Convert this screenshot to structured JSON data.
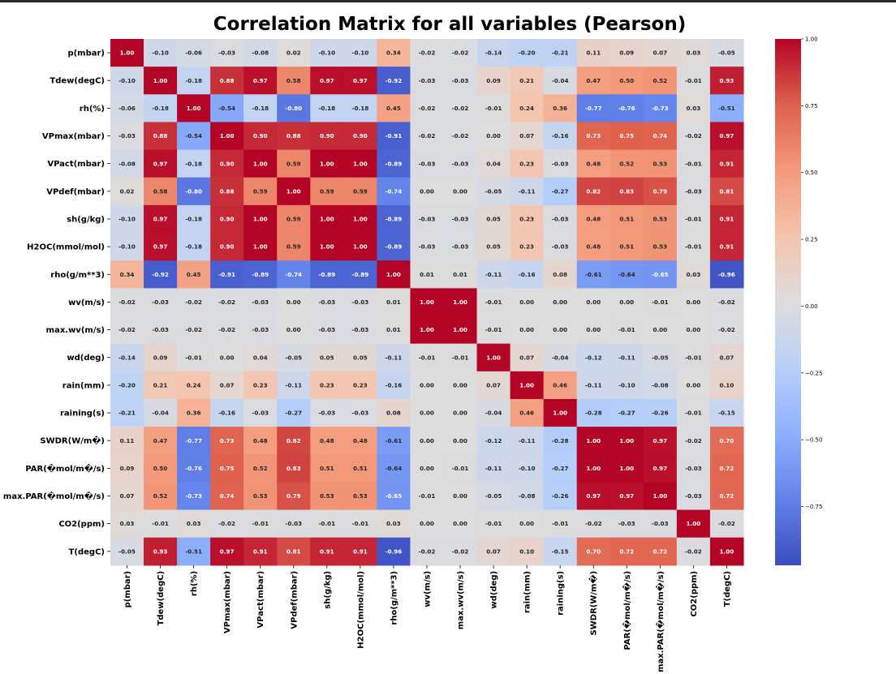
{
  "chart_data": {
    "type": "heatmap",
    "title": "Correlation Matrix for all variables (Pearson)",
    "variables": [
      "p(mbar)",
      "Tdew(degC)",
      "rh(%)",
      "VPmax(mbar)",
      "VPact(mbar)",
      "VPdef(mbar)",
      "sh(g/kg)",
      "H2OC(mmol/mol)",
      "rho(g/m**3)",
      "wv(m/s)",
      "max.wv(m/s)",
      "wd(deg)",
      "rain(mm)",
      "raining(s)",
      "SWDR(W/m�)",
      "PAR(�mol/m�/s)",
      "max.PAR(�mol/m�/s)",
      "CO2(ppm)",
      "T(degC)"
    ],
    "values": [
      [
        1.0,
        -0.1,
        -0.06,
        -0.03,
        -0.08,
        0.02,
        -0.1,
        -0.1,
        0.34,
        -0.02,
        -0.02,
        -0.14,
        -0.2,
        -0.21,
        0.11,
        0.09,
        0.07,
        0.03,
        -0.05
      ],
      [
        -0.1,
        1.0,
        -0.18,
        0.88,
        0.97,
        0.58,
        0.97,
        0.97,
        -0.92,
        -0.03,
        -0.03,
        0.09,
        0.21,
        -0.04,
        0.47,
        0.5,
        0.52,
        -0.01,
        0.93
      ],
      [
        -0.06,
        -0.18,
        1.0,
        -0.54,
        -0.18,
        -0.8,
        -0.18,
        -0.18,
        0.45,
        -0.02,
        -0.02,
        -0.01,
        0.24,
        0.36,
        -0.77,
        -0.76,
        -0.73,
        0.03,
        -0.51
      ],
      [
        -0.03,
        0.88,
        -0.54,
        1.0,
        0.9,
        0.88,
        0.9,
        0.9,
        -0.91,
        -0.02,
        -0.02,
        0.0,
        0.07,
        -0.16,
        0.73,
        0.75,
        0.74,
        -0.02,
        0.97
      ],
      [
        -0.08,
        0.97,
        -0.18,
        0.9,
        1.0,
        0.59,
        1.0,
        1.0,
        -0.89,
        -0.03,
        -0.03,
        0.04,
        0.23,
        -0.03,
        0.48,
        0.52,
        0.53,
        -0.01,
        0.91
      ],
      [
        0.02,
        0.58,
        -0.8,
        0.88,
        0.59,
        1.0,
        0.59,
        0.59,
        -0.74,
        0.0,
        0.0,
        -0.05,
        -0.11,
        -0.27,
        0.82,
        0.83,
        0.79,
        -0.03,
        0.81
      ],
      [
        -0.1,
        0.97,
        -0.18,
        0.9,
        1.0,
        0.59,
        1.0,
        1.0,
        -0.89,
        -0.03,
        -0.03,
        0.05,
        0.23,
        -0.03,
        0.48,
        0.51,
        0.53,
        -0.01,
        0.91
      ],
      [
        -0.1,
        0.97,
        -0.18,
        0.9,
        1.0,
        0.59,
        1.0,
        1.0,
        -0.89,
        -0.03,
        -0.03,
        0.05,
        0.23,
        -0.03,
        0.48,
        0.51,
        0.53,
        -0.01,
        0.91
      ],
      [
        0.34,
        -0.92,
        0.45,
        -0.91,
        -0.89,
        -0.74,
        -0.89,
        -0.89,
        1.0,
        0.01,
        0.01,
        -0.11,
        -0.16,
        0.08,
        -0.61,
        -0.64,
        -0.65,
        0.03,
        -0.96
      ],
      [
        -0.02,
        -0.03,
        -0.02,
        -0.02,
        -0.03,
        0.0,
        -0.03,
        -0.03,
        0.01,
        1.0,
        1.0,
        -0.01,
        0.0,
        0.0,
        -0.0,
        -0.0,
        -0.01,
        0.0,
        -0.02
      ],
      [
        -0.02,
        -0.03,
        -0.02,
        -0.02,
        -0.03,
        0.0,
        -0.03,
        -0.03,
        0.01,
        1.0,
        1.0,
        -0.01,
        0.0,
        0.0,
        -0.0,
        -0.01,
        -0.0,
        -0.0,
        -0.02
      ],
      [
        -0.14,
        0.09,
        -0.01,
        0.0,
        0.04,
        -0.05,
        0.05,
        0.05,
        -0.11,
        -0.01,
        -0.01,
        1.0,
        0.07,
        -0.04,
        -0.12,
        -0.11,
        -0.05,
        -0.01,
        0.07
      ],
      [
        -0.2,
        0.21,
        0.24,
        0.07,
        0.23,
        -0.11,
        0.23,
        0.23,
        -0.16,
        0.0,
        0.0,
        0.07,
        1.0,
        0.46,
        -0.11,
        -0.1,
        -0.08,
        0.0,
        0.1
      ],
      [
        -0.21,
        -0.04,
        0.36,
        -0.16,
        -0.03,
        -0.27,
        -0.03,
        -0.03,
        0.08,
        0.0,
        0.0,
        -0.04,
        0.46,
        1.0,
        -0.28,
        -0.27,
        -0.26,
        -0.01,
        -0.15
      ],
      [
        0.11,
        0.47,
        -0.77,
        0.73,
        0.48,
        0.82,
        0.48,
        0.48,
        -0.61,
        -0.0,
        -0.0,
        -0.12,
        -0.11,
        -0.28,
        1.0,
        1.0,
        0.97,
        -0.02,
        0.7
      ],
      [
        0.09,
        0.5,
        -0.76,
        0.75,
        0.52,
        0.83,
        0.51,
        0.51,
        -0.64,
        -0.0,
        -0.01,
        -0.11,
        -0.1,
        -0.27,
        1.0,
        1.0,
        0.97,
        -0.03,
        0.72
      ],
      [
        0.07,
        0.52,
        -0.73,
        0.74,
        0.53,
        0.79,
        0.53,
        0.53,
        -0.65,
        -0.01,
        -0.0,
        -0.05,
        -0.08,
        -0.26,
        0.97,
        0.97,
        1.0,
        -0.03,
        0.72
      ],
      [
        0.03,
        -0.01,
        0.03,
        -0.02,
        -0.01,
        -0.03,
        -0.01,
        -0.01,
        0.03,
        0.0,
        -0.0,
        -0.01,
        0.0,
        -0.01,
        -0.02,
        -0.03,
        -0.03,
        1.0,
        -0.02
      ],
      [
        -0.05,
        0.93,
        -0.51,
        0.97,
        0.91,
        0.81,
        0.91,
        0.91,
        -0.96,
        -0.02,
        -0.02,
        0.07,
        0.1,
        -0.15,
        0.7,
        0.72,
        0.72,
        -0.02,
        1.0
      ]
    ],
    "value_format": "2 decimals",
    "colormap": "coolwarm",
    "value_range": [
      -1.0,
      1.0
    ],
    "colorbar": {
      "ticks": [
        1.0,
        0.75,
        0.5,
        0.25,
        0.0,
        -0.25,
        -0.5,
        -0.75
      ],
      "tick_labels": [
        "1.00",
        "0.75",
        "0.50",
        "0.25",
        "0.00",
        "−0.25",
        "−0.50",
        "−0.75"
      ]
    }
  }
}
